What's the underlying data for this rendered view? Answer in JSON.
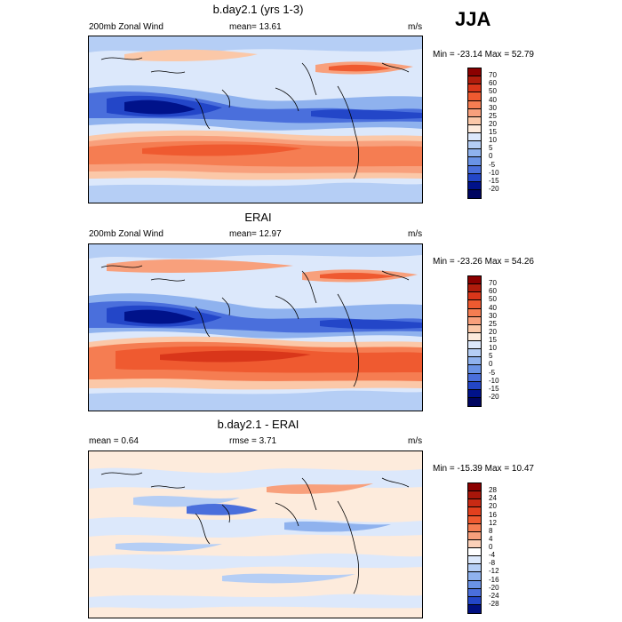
{
  "season": "JJA",
  "panels": [
    {
      "title": "b.day2.1 (yrs 1-3)",
      "left_label": "200mb Zonal Wind",
      "center_label": "mean=  13.61",
      "units": "m/s",
      "minmax": "Min = -23.14 Max =  52.79",
      "colorbar": {
        "labels": [
          "70",
          "60",
          "50",
          "40",
          "30",
          "25",
          "20",
          "15",
          "10",
          "5",
          "0",
          "-5",
          "-10",
          "-15",
          "-20"
        ],
        "colors": [
          "#8b0000",
          "#b01c0c",
          "#d9361a",
          "#ef5a30",
          "#f57d52",
          "#f8a07c",
          "#fbc8a8",
          "#fdebdc",
          "#dce8fb",
          "#b5cef5",
          "#8fb2ee",
          "#6a93e6",
          "#4a6fdc",
          "#2346c8",
          "#00128a",
          "#000560"
        ]
      }
    },
    {
      "title": "ERAI",
      "left_label": "200mb Zonal Wind",
      "center_label": "mean=  12.97",
      "units": "m/s",
      "minmax": "Min = -23.26 Max =  54.26",
      "colorbar": {
        "labels": [
          "70",
          "60",
          "50",
          "40",
          "30",
          "25",
          "20",
          "15",
          "10",
          "5",
          "0",
          "-5",
          "-10",
          "-15",
          "-20"
        ],
        "colors": [
          "#8b0000",
          "#b01c0c",
          "#d9361a",
          "#ef5a30",
          "#f57d52",
          "#f8a07c",
          "#fbc8a8",
          "#fdebdc",
          "#dce8fb",
          "#b5cef5",
          "#8fb2ee",
          "#6a93e6",
          "#4a6fdc",
          "#2346c8",
          "#00128a",
          "#000560"
        ]
      }
    },
    {
      "title": "b.day2.1 - ERAI",
      "left_label": "mean =   0.64",
      "center_label": "rmse =   3.71",
      "units": "m/s",
      "minmax": "Min = -15.39 Max =  10.47",
      "colorbar": {
        "labels": [
          "28",
          "24",
          "20",
          "16",
          "12",
          "8",
          "4",
          "0",
          "-4",
          "-8",
          "-12",
          "-16",
          "-20",
          "-24",
          "-28"
        ],
        "colors": [
          "#8b0000",
          "#a8160a",
          "#c92a14",
          "#e2401e",
          "#ef5a30",
          "#f57d52",
          "#f8a07c",
          "#fbd0b8",
          "#ffffff",
          "#dce8fb",
          "#b5cef5",
          "#8fb2ee",
          "#6a93e6",
          "#4a6fdc",
          "#2346c8",
          "#000f80"
        ]
      }
    }
  ]
}
